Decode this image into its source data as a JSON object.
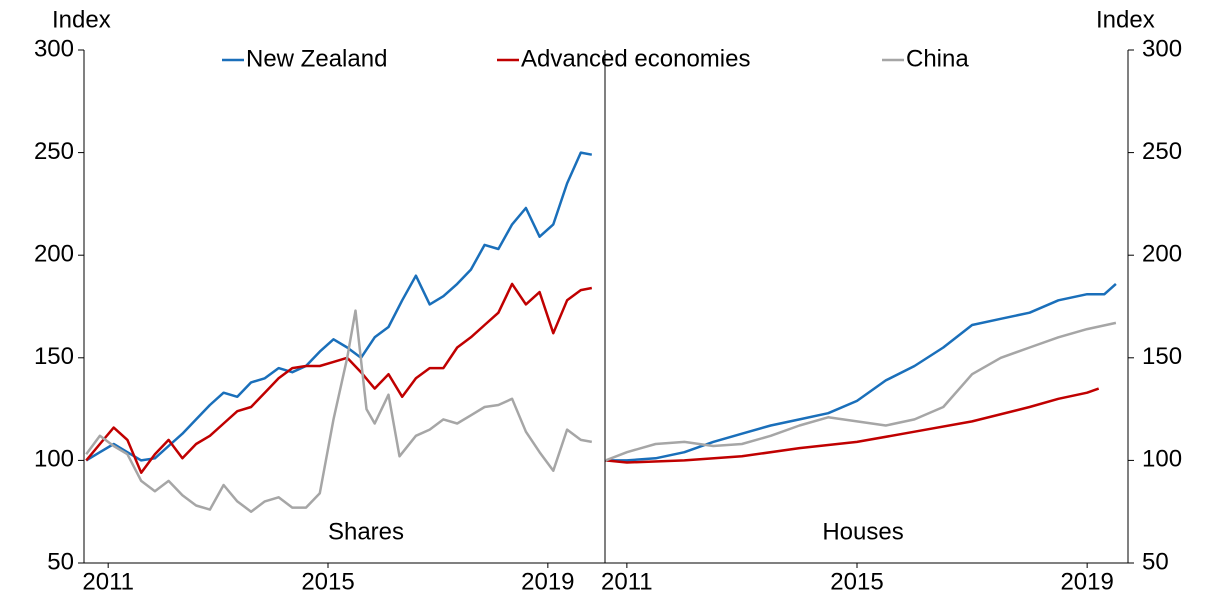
{
  "chart_data": [
    {
      "type": "line",
      "title": "Shares",
      "ylabel": "Index",
      "legend": "top",
      "xlim": [
        2010.56,
        2020.04
      ],
      "xticks": [
        2011,
        2015,
        2019
      ],
      "ylim": [
        50,
        300
      ],
      "yticks": [
        50,
        100,
        150,
        200,
        250,
        300
      ],
      "series": [
        {
          "name": "New Zealand",
          "color": "#1a6fba",
          "x": [
            2010.6,
            2010.85,
            2011.1,
            2011.35,
            2011.6,
            2011.85,
            2012.1,
            2012.35,
            2012.6,
            2012.85,
            2013.1,
            2013.35,
            2013.6,
            2013.85,
            2014.1,
            2014.35,
            2014.6,
            2014.85,
            2015.1,
            2015.35,
            2015.6,
            2015.85,
            2016.1,
            2016.35,
            2016.6,
            2016.85,
            2017.1,
            2017.35,
            2017.6,
            2017.85,
            2018.1,
            2018.35,
            2018.6,
            2018.85,
            2019.1,
            2019.35,
            2019.6,
            2019.8
          ],
          "values": [
            100,
            104,
            108,
            104,
            100,
            101,
            107,
            113,
            120,
            127,
            133,
            131,
            138,
            140,
            145,
            143,
            146,
            153,
            159,
            155,
            150,
            160,
            165,
            178,
            190,
            176,
            180,
            186,
            193,
            205,
            203,
            215,
            223,
            209,
            215,
            235,
            250,
            249
          ]
        },
        {
          "name": "Advanced economies",
          "color": "#c00000",
          "x": [
            2010.6,
            2010.85,
            2011.1,
            2011.35,
            2011.6,
            2011.85,
            2012.1,
            2012.35,
            2012.6,
            2012.85,
            2013.1,
            2013.35,
            2013.6,
            2013.85,
            2014.1,
            2014.35,
            2014.6,
            2014.85,
            2015.1,
            2015.35,
            2015.6,
            2015.85,
            2016.1,
            2016.35,
            2016.6,
            2016.85,
            2017.1,
            2017.35,
            2017.6,
            2017.85,
            2018.1,
            2018.35,
            2018.6,
            2018.85,
            2019.1,
            2019.35,
            2019.6,
            2019.8
          ],
          "values": [
            100,
            108,
            116,
            110,
            94,
            103,
            110,
            101,
            108,
            112,
            118,
            124,
            126,
            133,
            140,
            145,
            146,
            146,
            148,
            150,
            143,
            135,
            142,
            131,
            140,
            145,
            145,
            155,
            160,
            166,
            172,
            186,
            176,
            182,
            162,
            178,
            183,
            184
          ]
        },
        {
          "name": "China",
          "color": "#a6a6a6",
          "x": [
            2010.6,
            2010.85,
            2011.1,
            2011.35,
            2011.6,
            2011.85,
            2012.1,
            2012.35,
            2012.6,
            2012.85,
            2013.1,
            2013.35,
            2013.6,
            2013.85,
            2014.1,
            2014.35,
            2014.6,
            2014.85,
            2015.1,
            2015.35,
            2015.5,
            2015.7,
            2015.85,
            2016.1,
            2016.3,
            2016.6,
            2016.85,
            2017.1,
            2017.35,
            2017.6,
            2017.85,
            2018.1,
            2018.35,
            2018.6,
            2018.85,
            2019.1,
            2019.35,
            2019.6,
            2019.8
          ],
          "values": [
            103,
            112,
            107,
            103,
            90,
            85,
            90,
            83,
            78,
            76,
            88,
            80,
            75,
            80,
            82,
            77,
            77,
            84,
            120,
            150,
            173,
            125,
            118,
            132,
            102,
            112,
            115,
            120,
            118,
            122,
            126,
            127,
            130,
            114,
            104,
            95,
            115,
            110,
            109
          ]
        }
      ]
    },
    {
      "type": "line",
      "title": "Houses",
      "ylabel": "Index",
      "xlim": [
        2010.62,
        2019.71
      ],
      "xticks": [
        2011,
        2015,
        2019
      ],
      "ylim": [
        50,
        300
      ],
      "yticks": [
        50,
        100,
        150,
        200,
        250,
        300
      ],
      "series": [
        {
          "color": "#1a6fba",
          "x": [
            2010.63,
            2011,
            2011.5,
            2012,
            2012.5,
            2013,
            2013.5,
            2014,
            2014.5,
            2015,
            2015.5,
            2016,
            2016.5,
            2017,
            2017.5,
            2018,
            2018.5,
            2019,
            2019.3,
            2019.5
          ],
          "values": [
            100,
            100,
            101,
            104,
            109,
            113,
            117,
            120,
            123,
            129,
            139,
            146,
            155,
            166,
            169,
            172,
            178,
            181,
            181,
            186
          ]
        },
        {
          "color": "#c00000",
          "x": [
            2010.63,
            2011,
            2012,
            2013,
            2014,
            2015,
            2016,
            2017,
            2018,
            2018.5,
            2019,
            2019.2
          ],
          "values": [
            100,
            99,
            100,
            102,
            106,
            109,
            114,
            119,
            126,
            130,
            133,
            135
          ]
        },
        {
          "color": "#a6a6a6",
          "x": [
            2010.63,
            2011,
            2011.5,
            2012,
            2012.5,
            2013,
            2013.5,
            2014,
            2014.5,
            2015,
            2015.5,
            2016,
            2016.5,
            2017,
            2017.5,
            2018,
            2018.5,
            2019,
            2019.5
          ],
          "values": [
            100,
            104,
            108,
            109,
            107,
            108,
            112,
            117,
            121,
            119,
            117,
            120,
            126,
            142,
            150,
            155,
            160,
            164,
            167
          ]
        }
      ]
    }
  ]
}
